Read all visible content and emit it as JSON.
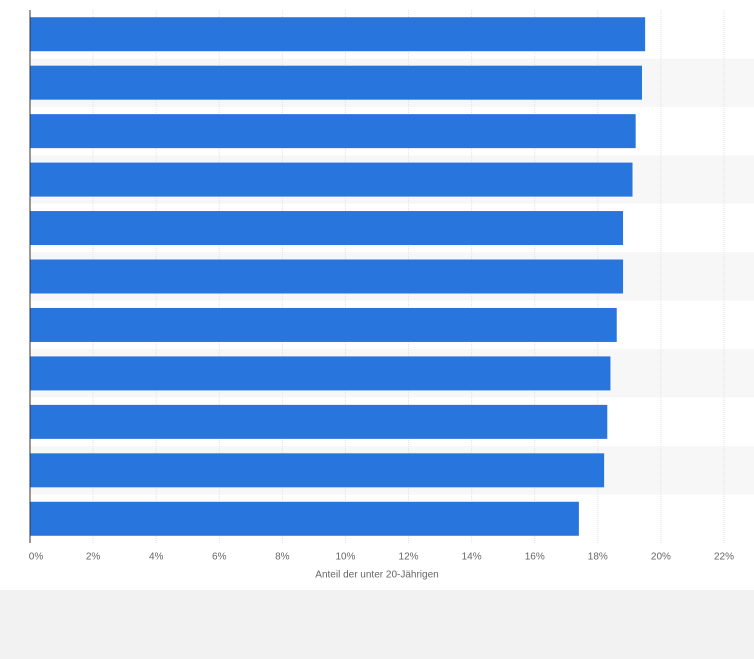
{
  "chart_data": {
    "type": "bar",
    "orientation": "horizontal",
    "x_label": "Anteil der unter 20-Jährigen",
    "categories": [
      null,
      null,
      null,
      null,
      null,
      null,
      null,
      null,
      null,
      null,
      null
    ],
    "values": [
      19.5,
      19.4,
      19.2,
      19.1,
      18.8,
      18.8,
      18.6,
      18.4,
      18.3,
      18.2,
      17.4
    ],
    "color": "#2876dd",
    "xlim": [
      0,
      22
    ],
    "xticks": [
      {
        "value": 0,
        "label": "0%"
      },
      {
        "value": 2,
        "label": "2%"
      },
      {
        "value": 4,
        "label": "4%"
      },
      {
        "value": 6,
        "label": "6%"
      },
      {
        "value": 8,
        "label": "8%"
      },
      {
        "value": 10,
        "label": "10%"
      },
      {
        "value": 12,
        "label": "12%"
      },
      {
        "value": 14,
        "label": "14%"
      },
      {
        "value": 16,
        "label": "16%"
      },
      {
        "value": 18,
        "label": "18%"
      },
      {
        "value": 20,
        "label": "20%"
      },
      {
        "value": 22,
        "label": "22%"
      }
    ],
    "grid": true
  }
}
